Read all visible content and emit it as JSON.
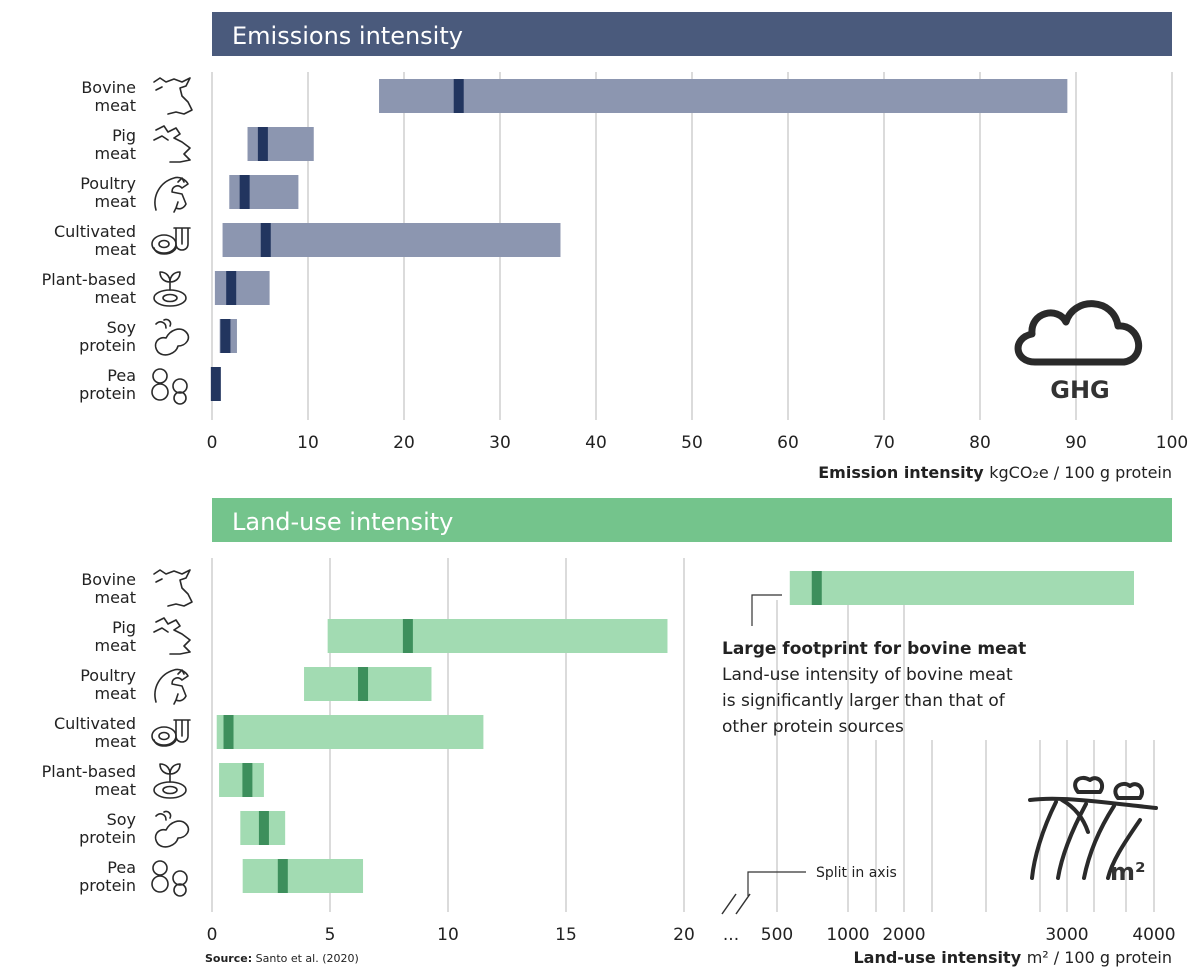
{
  "source_label": "Source:",
  "source_text": "Santo et al. (2020)",
  "colors": {
    "emissions_header": "#4a5a7c",
    "emissions_range": "#8c96b0",
    "emissions_median": "#22355f",
    "landuse_header": "#74c48c",
    "landuse_range": "#a2dbb2",
    "landuse_median": "#3d8f5c",
    "grid": "#cfcfcf"
  },
  "chart_data": [
    {
      "type": "bar",
      "title": "Emissions intensity",
      "xlabel_bold": "Emission intensity",
      "xlabel_unit": "kgCO₂e / 100 g protein",
      "xlim": [
        0,
        100
      ],
      "xticks": [
        "0",
        "10",
        "20",
        "30",
        "40",
        "50",
        "60",
        "70",
        "80",
        "90",
        "100"
      ],
      "categories": [
        {
          "line1": "Bovine",
          "line2": "meat",
          "icon": "cow-icon"
        },
        {
          "line1": "Pig",
          "line2": "meat",
          "icon": "pig-icon"
        },
        {
          "line1": "Poultry",
          "line2": "meat",
          "icon": "chicken-icon"
        },
        {
          "line1": "Cultivated",
          "line2": "meat",
          "icon": "cultivated-meat-icon"
        },
        {
          "line1": "Plant-based",
          "line2": "meat",
          "icon": "plant-based-meat-icon"
        },
        {
          "line1": "Soy",
          "line2": "protein",
          "icon": "soy-icon"
        },
        {
          "line1": "Pea",
          "line2": "protein",
          "icon": "pea-icon"
        }
      ],
      "ranges": [
        [
          17.4,
          89.1
        ],
        [
          3.7,
          10.6
        ],
        [
          1.8,
          9.0
        ],
        [
          1.1,
          36.3
        ],
        [
          0.3,
          6.0
        ],
        [
          0.8,
          2.6
        ],
        [
          0.1,
          0.7
        ]
      ],
      "medians": [
        25.7,
        5.3,
        3.4,
        5.6,
        2.0,
        1.4,
        0.4
      ],
      "badge_icon": "cloud-icon",
      "badge_text": "GHG"
    },
    {
      "type": "bar",
      "title": "Land-use intensity",
      "xlabel_bold": "Land-use intensity",
      "xlabel_unit": "m² / 100 g protein",
      "xlim_left": [
        0,
        20
      ],
      "xlim_right": [
        500,
        4000
      ],
      "xticks_left": [
        "0",
        "5",
        "10",
        "15",
        "20"
      ],
      "xticks_right": [
        "500",
        "1000",
        "2000",
        "3000",
        "4000"
      ],
      "split_label": "Split in axis",
      "split_ellipsis": "...",
      "ranges": [
        [
          590,
          3770
        ],
        [
          4.9,
          19.3
        ],
        [
          3.9,
          9.3
        ],
        [
          0.2,
          11.5
        ],
        [
          0.3,
          2.2
        ],
        [
          1.2,
          3.1
        ],
        [
          1.3,
          6.4
        ]
      ],
      "medians": [
        780,
        8.3,
        6.4,
        0.7,
        1.5,
        2.2,
        3.0
      ],
      "annotation_title": "Large footprint for bovine meat",
      "annotation_lines": [
        "Land-use intensity of bovine meat",
        "is significantly larger than that of",
        "other protein sources"
      ],
      "badge_icon": "field-icon",
      "badge_text": "m²"
    }
  ]
}
